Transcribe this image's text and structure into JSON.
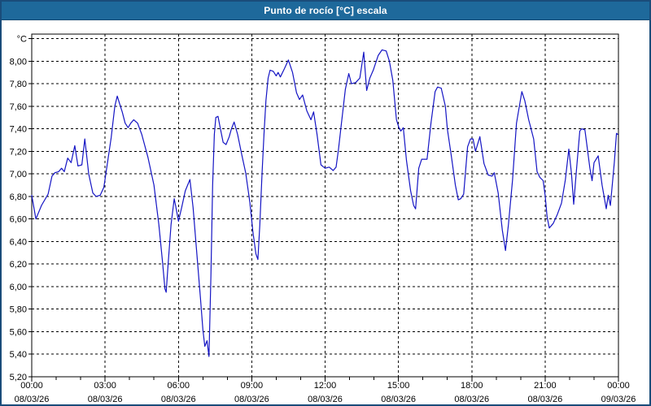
{
  "window": {
    "title": "Punto de rocío [°C] escala"
  },
  "colors": {
    "titlebar_bg": "#1e699b",
    "window_border": "#1a4c7a",
    "grid": "#000000",
    "line": "#1515c4",
    "plot_bg": "#ffffff"
  },
  "chart_data": {
    "type": "line",
    "title": "Punto de rocío [°C] escala",
    "xlabel": "",
    "ylabel": "°C",
    "grid": "dashed",
    "legend_position": "none",
    "line_color": "#1515c4",
    "ylim": [
      5.2,
      8.24
    ],
    "xlim_hours": [
      0,
      24
    ],
    "y_unit": {
      "v": 8.2,
      "label": "°C"
    },
    "y_ticks": [
      {
        "v": 5.2,
        "label": "5,20"
      },
      {
        "v": 5.4,
        "label": "5,40"
      },
      {
        "v": 5.6,
        "label": "5,60"
      },
      {
        "v": 5.8,
        "label": "5,80"
      },
      {
        "v": 6.0,
        "label": "6,00"
      },
      {
        "v": 6.2,
        "label": "6,20"
      },
      {
        "v": 6.4,
        "label": "6,40"
      },
      {
        "v": 6.6,
        "label": "6,60"
      },
      {
        "v": 6.8,
        "label": "6,80"
      },
      {
        "v": 7.0,
        "label": "7,00"
      },
      {
        "v": 7.2,
        "label": "7,20"
      },
      {
        "v": 7.4,
        "label": "7,40"
      },
      {
        "v": 7.6,
        "label": "7,60"
      },
      {
        "v": 7.8,
        "label": "7,80"
      },
      {
        "v": 8.0,
        "label": "8,00"
      }
    ],
    "x_ticks": [
      {
        "h": 0,
        "time": "00:00",
        "date": "08/03/26"
      },
      {
        "h": 3,
        "time": "03:00",
        "date": "08/03/26"
      },
      {
        "h": 6,
        "time": "06:00",
        "date": "08/03/26"
      },
      {
        "h": 9,
        "time": "09:00",
        "date": "08/03/26"
      },
      {
        "h": 12,
        "time": "12:00",
        "date": "08/03/26"
      },
      {
        "h": 15,
        "time": "15:00",
        "date": "08/03/26"
      },
      {
        "h": 18,
        "time": "18:00",
        "date": "08/03/26"
      },
      {
        "h": 21,
        "time": "21:00",
        "date": "08/03/26"
      },
      {
        "h": 24,
        "time": "00:00",
        "date": "09/03/26"
      }
    ],
    "series": [
      {
        "name": "Punto de rocío",
        "points": [
          [
            0.0,
            6.81
          ],
          [
            0.17,
            6.6
          ],
          [
            0.4,
            6.72
          ],
          [
            0.67,
            6.82
          ],
          [
            0.83,
            6.98
          ],
          [
            0.95,
            7.01
          ],
          [
            1.1,
            7.02
          ],
          [
            1.22,
            7.05
          ],
          [
            1.33,
            7.02
          ],
          [
            1.47,
            7.14
          ],
          [
            1.61,
            7.1
          ],
          [
            1.76,
            7.25
          ],
          [
            1.89,
            7.07
          ],
          [
            2.05,
            7.08
          ],
          [
            2.17,
            7.31
          ],
          [
            2.33,
            7.0
          ],
          [
            2.5,
            6.83
          ],
          [
            2.63,
            6.8
          ],
          [
            2.8,
            6.81
          ],
          [
            2.95,
            6.88
          ],
          [
            3.1,
            7.1
          ],
          [
            3.25,
            7.32
          ],
          [
            3.4,
            7.6
          ],
          [
            3.5,
            7.69
          ],
          [
            3.6,
            7.62
          ],
          [
            3.7,
            7.55
          ],
          [
            3.82,
            7.45
          ],
          [
            3.94,
            7.41
          ],
          [
            4.05,
            7.45
          ],
          [
            4.17,
            7.48
          ],
          [
            4.33,
            7.45
          ],
          [
            4.5,
            7.35
          ],
          [
            4.75,
            7.15
          ],
          [
            5.0,
            6.9
          ],
          [
            5.2,
            6.55
          ],
          [
            5.35,
            6.22
          ],
          [
            5.45,
            5.98
          ],
          [
            5.5,
            5.95
          ],
          [
            5.58,
            6.2
          ],
          [
            5.7,
            6.55
          ],
          [
            5.83,
            6.78
          ],
          [
            5.92,
            6.68
          ],
          [
            6.0,
            6.58
          ],
          [
            6.13,
            6.7
          ],
          [
            6.28,
            6.85
          ],
          [
            6.47,
            6.95
          ],
          [
            6.6,
            6.7
          ],
          [
            6.75,
            6.3
          ],
          [
            6.9,
            5.9
          ],
          [
            7.0,
            5.62
          ],
          [
            7.08,
            5.47
          ],
          [
            7.17,
            5.52
          ],
          [
            7.25,
            5.38
          ],
          [
            7.33,
            6.1
          ],
          [
            7.4,
            6.9
          ],
          [
            7.47,
            7.35
          ],
          [
            7.53,
            7.5
          ],
          [
            7.62,
            7.51
          ],
          [
            7.7,
            7.42
          ],
          [
            7.83,
            7.28
          ],
          [
            7.95,
            7.26
          ],
          [
            8.08,
            7.33
          ],
          [
            8.17,
            7.4
          ],
          [
            8.28,
            7.46
          ],
          [
            8.42,
            7.35
          ],
          [
            8.58,
            7.18
          ],
          [
            8.75,
            7.01
          ],
          [
            8.92,
            6.75
          ],
          [
            9.05,
            6.48
          ],
          [
            9.17,
            6.29
          ],
          [
            9.25,
            6.24
          ],
          [
            9.33,
            6.55
          ],
          [
            9.42,
            7.0
          ],
          [
            9.5,
            7.35
          ],
          [
            9.58,
            7.65
          ],
          [
            9.67,
            7.85
          ],
          [
            9.75,
            7.92
          ],
          [
            9.88,
            7.91
          ],
          [
            10.0,
            7.87
          ],
          [
            10.08,
            7.9
          ],
          [
            10.17,
            7.86
          ],
          [
            10.33,
            7.93
          ],
          [
            10.5,
            8.01
          ],
          [
            10.67,
            7.9
          ],
          [
            10.83,
            7.72
          ],
          [
            10.95,
            7.66
          ],
          [
            11.08,
            7.7
          ],
          [
            11.25,
            7.56
          ],
          [
            11.42,
            7.48
          ],
          [
            11.53,
            7.55
          ],
          [
            11.67,
            7.35
          ],
          [
            11.83,
            7.08
          ],
          [
            12.0,
            7.05
          ],
          [
            12.17,
            7.06
          ],
          [
            12.33,
            7.03
          ],
          [
            12.45,
            7.06
          ],
          [
            12.55,
            7.22
          ],
          [
            12.67,
            7.45
          ],
          [
            12.83,
            7.75
          ],
          [
            12.97,
            7.89
          ],
          [
            13.08,
            7.8
          ],
          [
            13.25,
            7.81
          ],
          [
            13.42,
            7.85
          ],
          [
            13.58,
            8.08
          ],
          [
            13.7,
            7.74
          ],
          [
            13.83,
            7.85
          ],
          [
            13.97,
            7.92
          ],
          [
            14.17,
            8.05
          ],
          [
            14.33,
            8.1
          ],
          [
            14.5,
            8.09
          ],
          [
            14.63,
            8.0
          ],
          [
            14.77,
            7.83
          ],
          [
            14.92,
            7.48
          ],
          [
            15.02,
            7.41
          ],
          [
            15.1,
            7.38
          ],
          [
            15.2,
            7.41
          ],
          [
            15.33,
            7.12
          ],
          [
            15.5,
            6.85
          ],
          [
            15.62,
            6.72
          ],
          [
            15.7,
            6.69
          ],
          [
            15.83,
            7.05
          ],
          [
            15.95,
            7.13
          ],
          [
            16.17,
            7.13
          ],
          [
            16.33,
            7.45
          ],
          [
            16.5,
            7.73
          ],
          [
            16.6,
            7.77
          ],
          [
            16.75,
            7.76
          ],
          [
            16.92,
            7.6
          ],
          [
            17.0,
            7.4
          ],
          [
            17.17,
            7.15
          ],
          [
            17.33,
            6.9
          ],
          [
            17.45,
            6.77
          ],
          [
            17.55,
            6.78
          ],
          [
            17.67,
            6.82
          ],
          [
            17.83,
            7.24
          ],
          [
            17.95,
            7.31
          ],
          [
            18.05,
            7.31
          ],
          [
            18.15,
            7.2
          ],
          [
            18.33,
            7.33
          ],
          [
            18.5,
            7.09
          ],
          [
            18.67,
            6.99
          ],
          [
            18.83,
            6.98
          ],
          [
            18.92,
            7.01
          ],
          [
            19.08,
            6.83
          ],
          [
            19.25,
            6.5
          ],
          [
            19.38,
            6.32
          ],
          [
            19.5,
            6.55
          ],
          [
            19.67,
            6.95
          ],
          [
            19.83,
            7.45
          ],
          [
            20.05,
            7.73
          ],
          [
            20.17,
            7.65
          ],
          [
            20.33,
            7.48
          ],
          [
            20.53,
            7.31
          ],
          [
            20.67,
            7.02
          ],
          [
            20.78,
            6.97
          ],
          [
            20.92,
            6.94
          ],
          [
            21.0,
            6.81
          ],
          [
            21.08,
            6.62
          ],
          [
            21.17,
            6.52
          ],
          [
            21.33,
            6.56
          ],
          [
            21.5,
            6.64
          ],
          [
            21.67,
            6.74
          ],
          [
            21.83,
            6.95
          ],
          [
            21.97,
            7.22
          ],
          [
            22.08,
            7.0
          ],
          [
            22.17,
            6.73
          ],
          [
            22.27,
            7.0
          ],
          [
            22.42,
            7.38
          ],
          [
            22.5,
            7.4
          ],
          [
            22.63,
            7.39
          ],
          [
            22.83,
            7.05
          ],
          [
            22.92,
            6.94
          ],
          [
            23.0,
            7.1
          ],
          [
            23.17,
            7.16
          ],
          [
            23.33,
            6.9
          ],
          [
            23.5,
            6.69
          ],
          [
            23.58,
            6.81
          ],
          [
            23.67,
            6.72
          ],
          [
            23.83,
            7.1
          ],
          [
            23.92,
            7.36
          ],
          [
            23.97,
            7.35
          ]
        ]
      }
    ]
  }
}
